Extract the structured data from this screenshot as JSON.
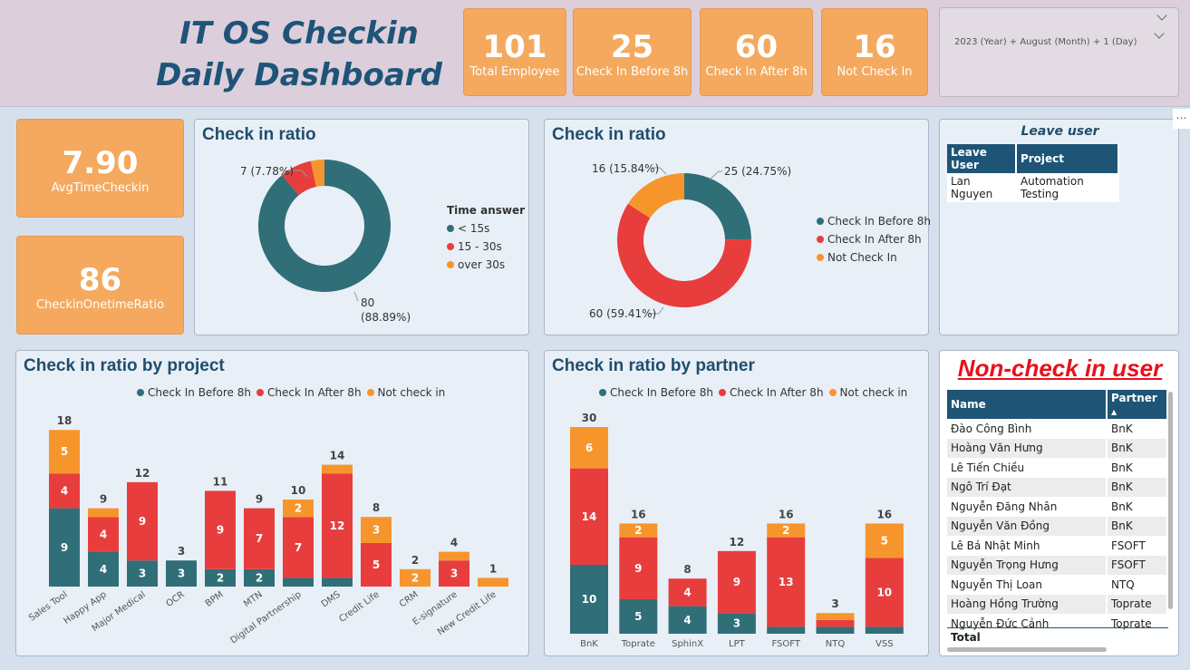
{
  "header": {
    "title_line1": "IT OS Checkin",
    "title_line2": "Daily Dashboard",
    "kpis": [
      {
        "value": "101",
        "label": "Total Employee"
      },
      {
        "value": "25",
        "label": "Check In Before 8h"
      },
      {
        "value": "60",
        "label": "Check In After 8h"
      },
      {
        "value": "16",
        "label": "Not Check In"
      }
    ],
    "filter_text": "2023 (Year) + August (Month) + 1 (Day)"
  },
  "side_kpis": [
    {
      "value": "7.90",
      "label": "AvgTimeCheckin"
    },
    {
      "value": "86",
      "label": "CheckinOnetimeRatio"
    }
  ],
  "colors": {
    "teal": "#306f78",
    "red": "#e83d3d",
    "orange": "#f7952d",
    "navy": "#1e5576",
    "title_blue": "#1f4e6b"
  },
  "chart_data": [
    {
      "type": "pie",
      "title": "Check in ratio",
      "legend_title": "Time answer",
      "legend_position": "right",
      "slices": [
        {
          "name": "< 15s",
          "value": 80,
          "label": "80 (88.89%)",
          "color": "#306f78"
        },
        {
          "name": "15 - 30s",
          "value": 7,
          "label": "",
          "color": "#e83d3d"
        },
        {
          "name": "over 30s",
          "value": 3,
          "label": "",
          "color": "#f7952d"
        }
      ],
      "extra_label": "7 (7.78%)"
    },
    {
      "type": "pie",
      "title": "Check in ratio",
      "legend_position": "right",
      "slices": [
        {
          "name": "Check In Before 8h",
          "value": 25,
          "label": "25 (24.75%)",
          "color": "#306f78"
        },
        {
          "name": "Check In After 8h",
          "value": 60,
          "label": "60 (59.41%)",
          "color": "#e83d3d"
        },
        {
          "name": "Not Check In",
          "value": 16,
          "label": "16 (15.84%)",
          "color": "#f7952d"
        }
      ]
    },
    {
      "type": "bar",
      "title": "Check in ratio by project",
      "stacked": true,
      "legend_position": "top",
      "categories": [
        "Sales Tool",
        "Happy App",
        "Major Medical",
        "OCR",
        "BPM",
        "MTN",
        "Digital Partnership",
        "DMS",
        "Credit Life",
        "CRM",
        "E-signature",
        "New Credit Life"
      ],
      "series": [
        {
          "name": "Check In Before 8h",
          "color": "#306f78",
          "values": [
            9,
            4,
            3,
            3,
            2,
            2,
            1,
            1,
            0,
            0,
            0,
            0
          ]
        },
        {
          "name": "Check In After 8h",
          "color": "#e83d3d",
          "values": [
            4,
            4,
            9,
            0,
            9,
            7,
            7,
            12,
            5,
            0,
            3,
            0
          ]
        },
        {
          "name": "Not check in",
          "color": "#f7952d",
          "values": [
            5,
            1,
            0,
            0,
            0,
            0,
            2,
            1,
            3,
            2,
            1,
            1
          ]
        }
      ],
      "totals": [
        18,
        9,
        12,
        3,
        11,
        9,
        10,
        14,
        8,
        2,
        4,
        1
      ]
    },
    {
      "type": "bar",
      "title": "Check in ratio by partner",
      "stacked": true,
      "legend_position": "top",
      "categories": [
        "BnK",
        "Toprate",
        "SphinX",
        "LPT",
        "FSOFT",
        "NTQ",
        "VSS"
      ],
      "series": [
        {
          "name": "Check In Before 8h",
          "color": "#306f78",
          "values": [
            10,
            5,
            4,
            3,
            1,
            1,
            1
          ]
        },
        {
          "name": "Check In After 8h",
          "color": "#e83d3d",
          "values": [
            14,
            9,
            4,
            9,
            13,
            1,
            10
          ]
        },
        {
          "name": "Not check in",
          "color": "#f7952d",
          "values": [
            6,
            2,
            0,
            0,
            2,
            1,
            5
          ]
        }
      ],
      "totals": [
        30,
        16,
        8,
        12,
        16,
        3,
        16
      ]
    }
  ],
  "leave_table": {
    "title": "Leave user",
    "columns": [
      "Leave User",
      "Project"
    ],
    "rows": [
      [
        "Lan Nguyen",
        "Automation Testing"
      ]
    ]
  },
  "noncheck_table": {
    "title": "Non-check in user",
    "columns": [
      "Name",
      "Partner"
    ],
    "rows": [
      [
        "Đào Công Bình",
        "BnK"
      ],
      [
        "Hoàng Văn Hưng",
        "BnK"
      ],
      [
        "Lê Tiến Chiều",
        "BnK"
      ],
      [
        "Ngô Trí Đạt",
        "BnK"
      ],
      [
        "Nguyễn Đăng Nhân",
        "BnK"
      ],
      [
        "Nguyễn Văn Đồng",
        "BnK"
      ],
      [
        "Lê Bá Nhật Minh",
        "FSOFT"
      ],
      [
        "Nguyễn Trọng Hưng",
        "FSOFT"
      ],
      [
        "Nguyễn Thị Loan",
        "NTQ"
      ],
      [
        "Hoàng Hồng Trường",
        "Toprate"
      ],
      [
        "Nguyễn Đức Cảnh",
        "Toprate"
      ]
    ],
    "total_label": "Total",
    "more_icon": "ellipsis-icon"
  }
}
